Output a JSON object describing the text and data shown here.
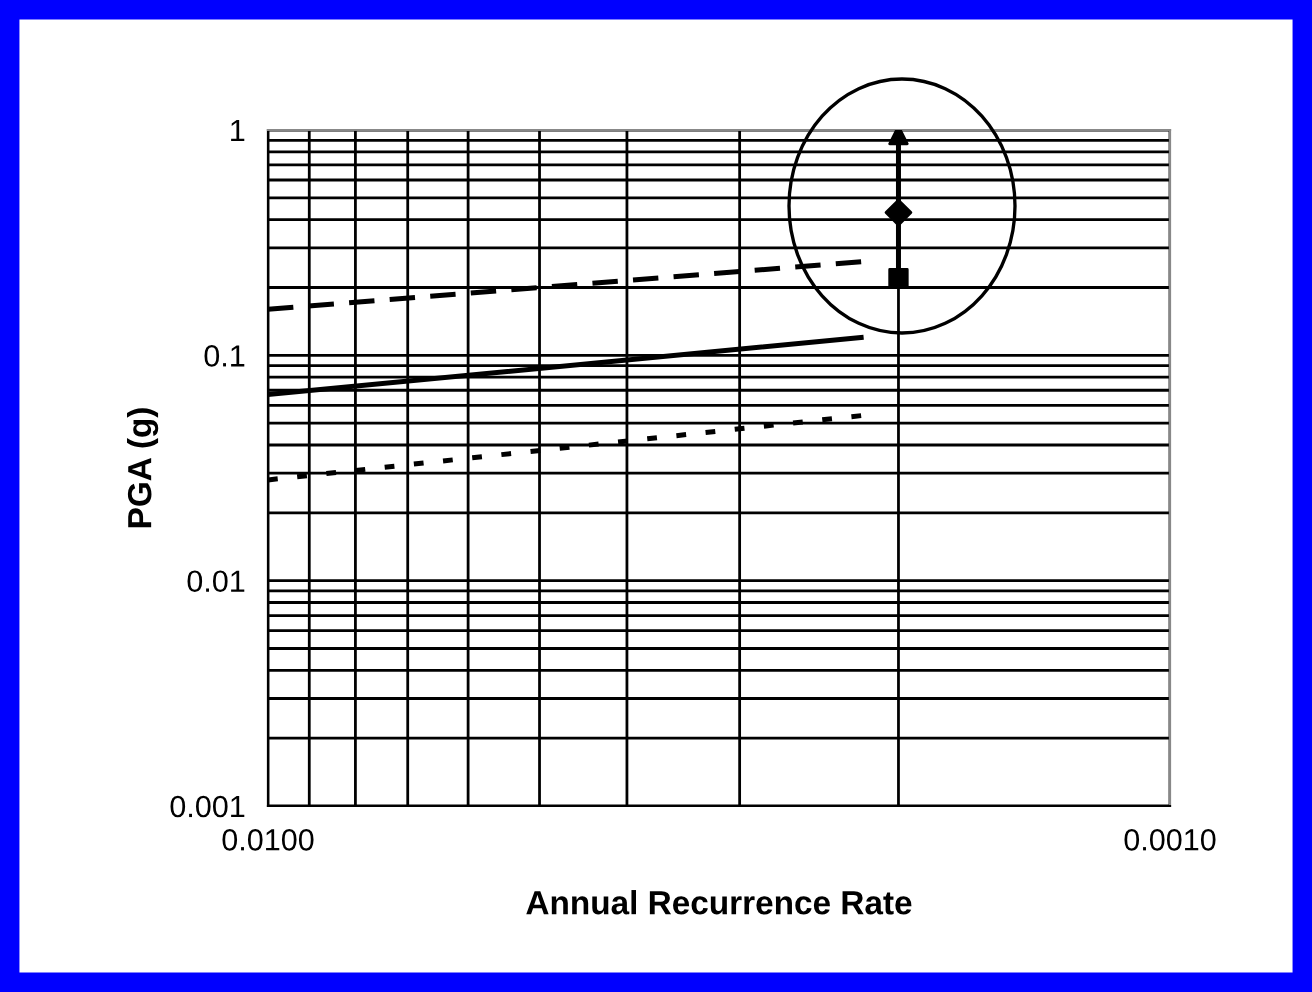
{
  "chart_data": {
    "type": "line",
    "xlabel": "Annual Recurrence Rate",
    "ylabel": "PGA (g)",
    "log": "xy",
    "grid": true,
    "xlim": [
      0.01,
      0.001
    ],
    "ylim": [
      0.001,
      1
    ],
    "xticks": [
      {
        "value": 0.01,
        "label": "0.0100"
      },
      {
        "value": 0.009,
        "label": null
      },
      {
        "value": 0.008,
        "label": null
      },
      {
        "value": 0.007,
        "label": null
      },
      {
        "value": 0.006,
        "label": null
      },
      {
        "value": 0.005,
        "label": null
      },
      {
        "value": 0.004,
        "label": null
      },
      {
        "value": 0.003,
        "label": null
      },
      {
        "value": 0.002,
        "label": null
      },
      {
        "value": 0.001,
        "label": "0.0010"
      }
    ],
    "yticks": [
      0.001,
      {
        "value": 0.002,
        "label": null
      },
      {
        "value": 0.003,
        "label": null
      },
      {
        "value": 0.004,
        "label": null
      },
      {
        "value": 0.005,
        "label": null
      },
      {
        "value": 0.006,
        "label": null
      },
      {
        "value": 0.007,
        "label": null
      },
      {
        "value": 0.008,
        "label": null
      },
      {
        "value": 0.009,
        "label": null
      },
      0.01,
      {
        "value": 0.02,
        "label": null
      },
      {
        "value": 0.03,
        "label": null
      },
      {
        "value": 0.04,
        "label": null
      },
      {
        "value": 0.05,
        "label": null
      },
      {
        "value": 0.06,
        "label": null
      },
      {
        "value": 0.07,
        "label": null
      },
      {
        "value": 0.08,
        "label": null
      },
      {
        "value": 0.09,
        "label": null
      },
      0.1,
      {
        "value": 0.2,
        "label": null
      },
      {
        "value": 0.3,
        "label": null
      },
      {
        "value": 0.4,
        "label": null
      },
      {
        "value": 0.5,
        "label": null
      },
      {
        "value": 0.6,
        "label": null
      },
      {
        "value": 0.7,
        "label": null
      },
      {
        "value": 0.8,
        "label": null
      },
      {
        "value": 0.9,
        "label": null
      },
      1
    ],
    "series": [
      {
        "color": "#000000",
        "line_style": "dashed",
        "x": [
          0.01,
          0.0022
        ],
        "values": [
          0.16,
          0.26
        ]
      },
      {
        "color": "#000000",
        "line_style": "solid",
        "x": [
          0.01,
          0.0022
        ],
        "values": [
          0.067,
          0.12
        ]
      },
      {
        "color": "#000000",
        "line_style": "dotted",
        "x": [
          0.01,
          0.0022
        ],
        "values": [
          0.028,
          0.054
        ]
      },
      {
        "color": "#000000",
        "line_style": "solid",
        "x": [
          0.002,
          0.002
        ],
        "values": [
          0.22,
          0.95
        ]
      },
      {
        "type": "scatter",
        "color": "#000000",
        "marker": "square",
        "x": [
          0.002
        ],
        "values": [
          0.22
        ]
      },
      {
        "type": "scatter",
        "color": "#000000",
        "marker": "diamond",
        "x": [
          0.002
        ],
        "values": [
          0.43
        ]
      },
      {
        "type": "scatter",
        "color": "#000000",
        "marker": "triangle",
        "x": [
          0.002
        ],
        "values": [
          0.95
        ]
      }
    ]
  }
}
